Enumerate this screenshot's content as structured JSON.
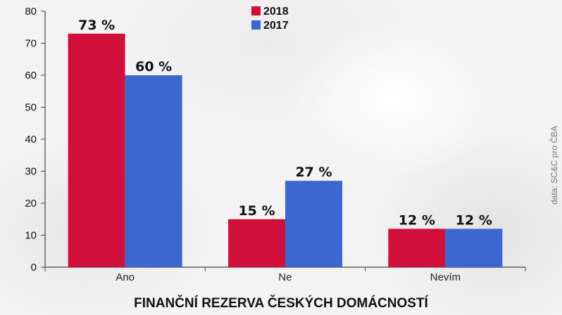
{
  "chart_data": {
    "type": "bar",
    "title": "FINANČNÍ REZERVA ČESKÝCH DOMÁCNOSTÍ",
    "source": "data: SC&C pro ČBA",
    "categories": [
      "Ano",
      "Ne",
      "Nevím"
    ],
    "series": [
      {
        "name": "2018",
        "color": "#d0103a",
        "values": [
          73,
          15,
          12
        ],
        "labels": [
          "73 %",
          "15 %",
          "12 %"
        ]
      },
      {
        "name": "2017",
        "color": "#3a67d0",
        "values": [
          60,
          27,
          12
        ],
        "labels": [
          "60 %",
          "27 %",
          "12 %"
        ]
      }
    ],
    "ylim": [
      0,
      80
    ],
    "yticks": [
      0,
      10,
      20,
      30,
      40,
      50,
      60,
      70,
      80
    ],
    "ytick_labels": [
      "0",
      "10",
      "20",
      "30",
      "40",
      "50",
      "60",
      "70",
      "80"
    ],
    "grid": false,
    "legend_position": "top-center"
  }
}
